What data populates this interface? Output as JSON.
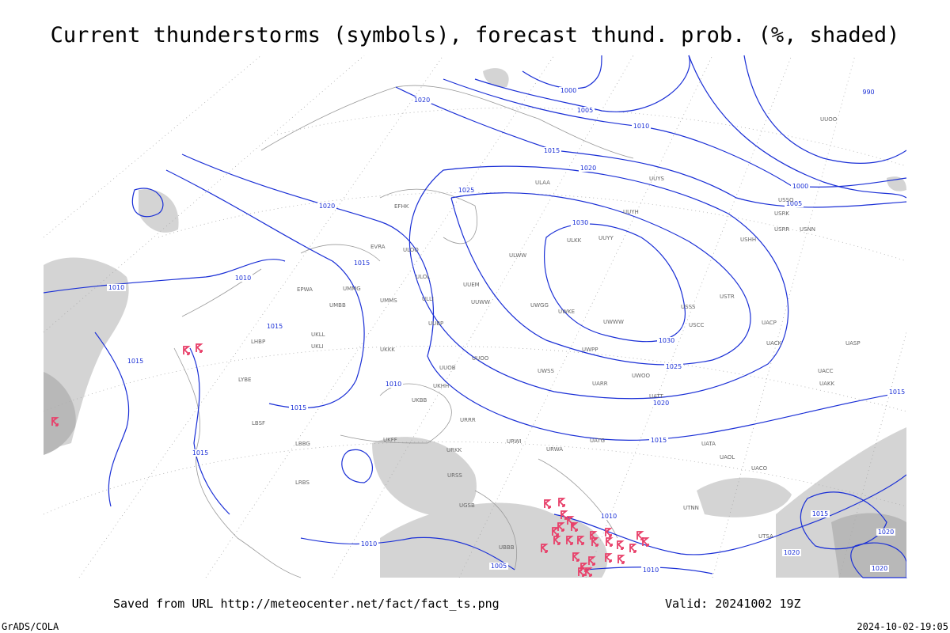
{
  "header": {
    "title": "Current thunderstorms (symbols), forecast thund. prob. (%, shaded)"
  },
  "footer": {
    "saved": "Saved from URL http://meteocenter.net/fact/fact_ts.png",
    "valid": "Valid: 20241002 19Z",
    "software": "GrADS/COLA",
    "timestamp": "2024-10-02-19:05"
  },
  "isobar_labels": [
    "1000",
    "1020",
    "1005",
    "1010",
    "1015",
    "1020",
    "1025",
    "1020",
    "1000",
    "1005",
    "1030",
    "1015",
    "1010",
    "1010",
    "1015",
    "1030",
    "1025",
    "1015",
    "1010",
    "1020",
    "1015",
    "1015",
    "1015",
    "1015",
    "1010",
    "1010",
    "1005",
    "1010",
    "990",
    "1015",
    "1020",
    "1020",
    "1020"
  ],
  "stations": [
    "ULAA",
    "UUYY",
    "ULKK",
    "UUYH",
    "UUYS",
    "USHH",
    "ULWW",
    "UUEM",
    "UUWW",
    "UWGG",
    "UWKE",
    "UWWW",
    "UWPP",
    "UUOO",
    "UWSS",
    "UARR",
    "UWOO",
    "UATT",
    "USCC",
    "USSS",
    "USTR",
    "UACP",
    "UACK",
    "UASP",
    "UACC",
    "UAKK",
    "UATG",
    "URWA",
    "URWI",
    "URRR",
    "UKFF",
    "UKHH",
    "UKBB",
    "UMMS",
    "UMMG",
    "UMBB",
    "EVRA",
    "ULOL",
    "ULLI",
    "EFHK",
    "UKLL",
    "UKLI",
    "LHBP",
    "LYBE",
    "LBSF",
    "LBBG",
    "LRBS",
    "EPWA",
    "UUOB",
    "UUBP",
    "UKKK",
    "URKK",
    "URSS",
    "UGSB",
    "UBBB",
    "UTNN",
    "UATA",
    "UAOL",
    "UACO",
    "UTSA",
    "USNN",
    "USRR",
    "USRK",
    "USSO",
    "ULOO",
    "UUOO"
  ]
}
